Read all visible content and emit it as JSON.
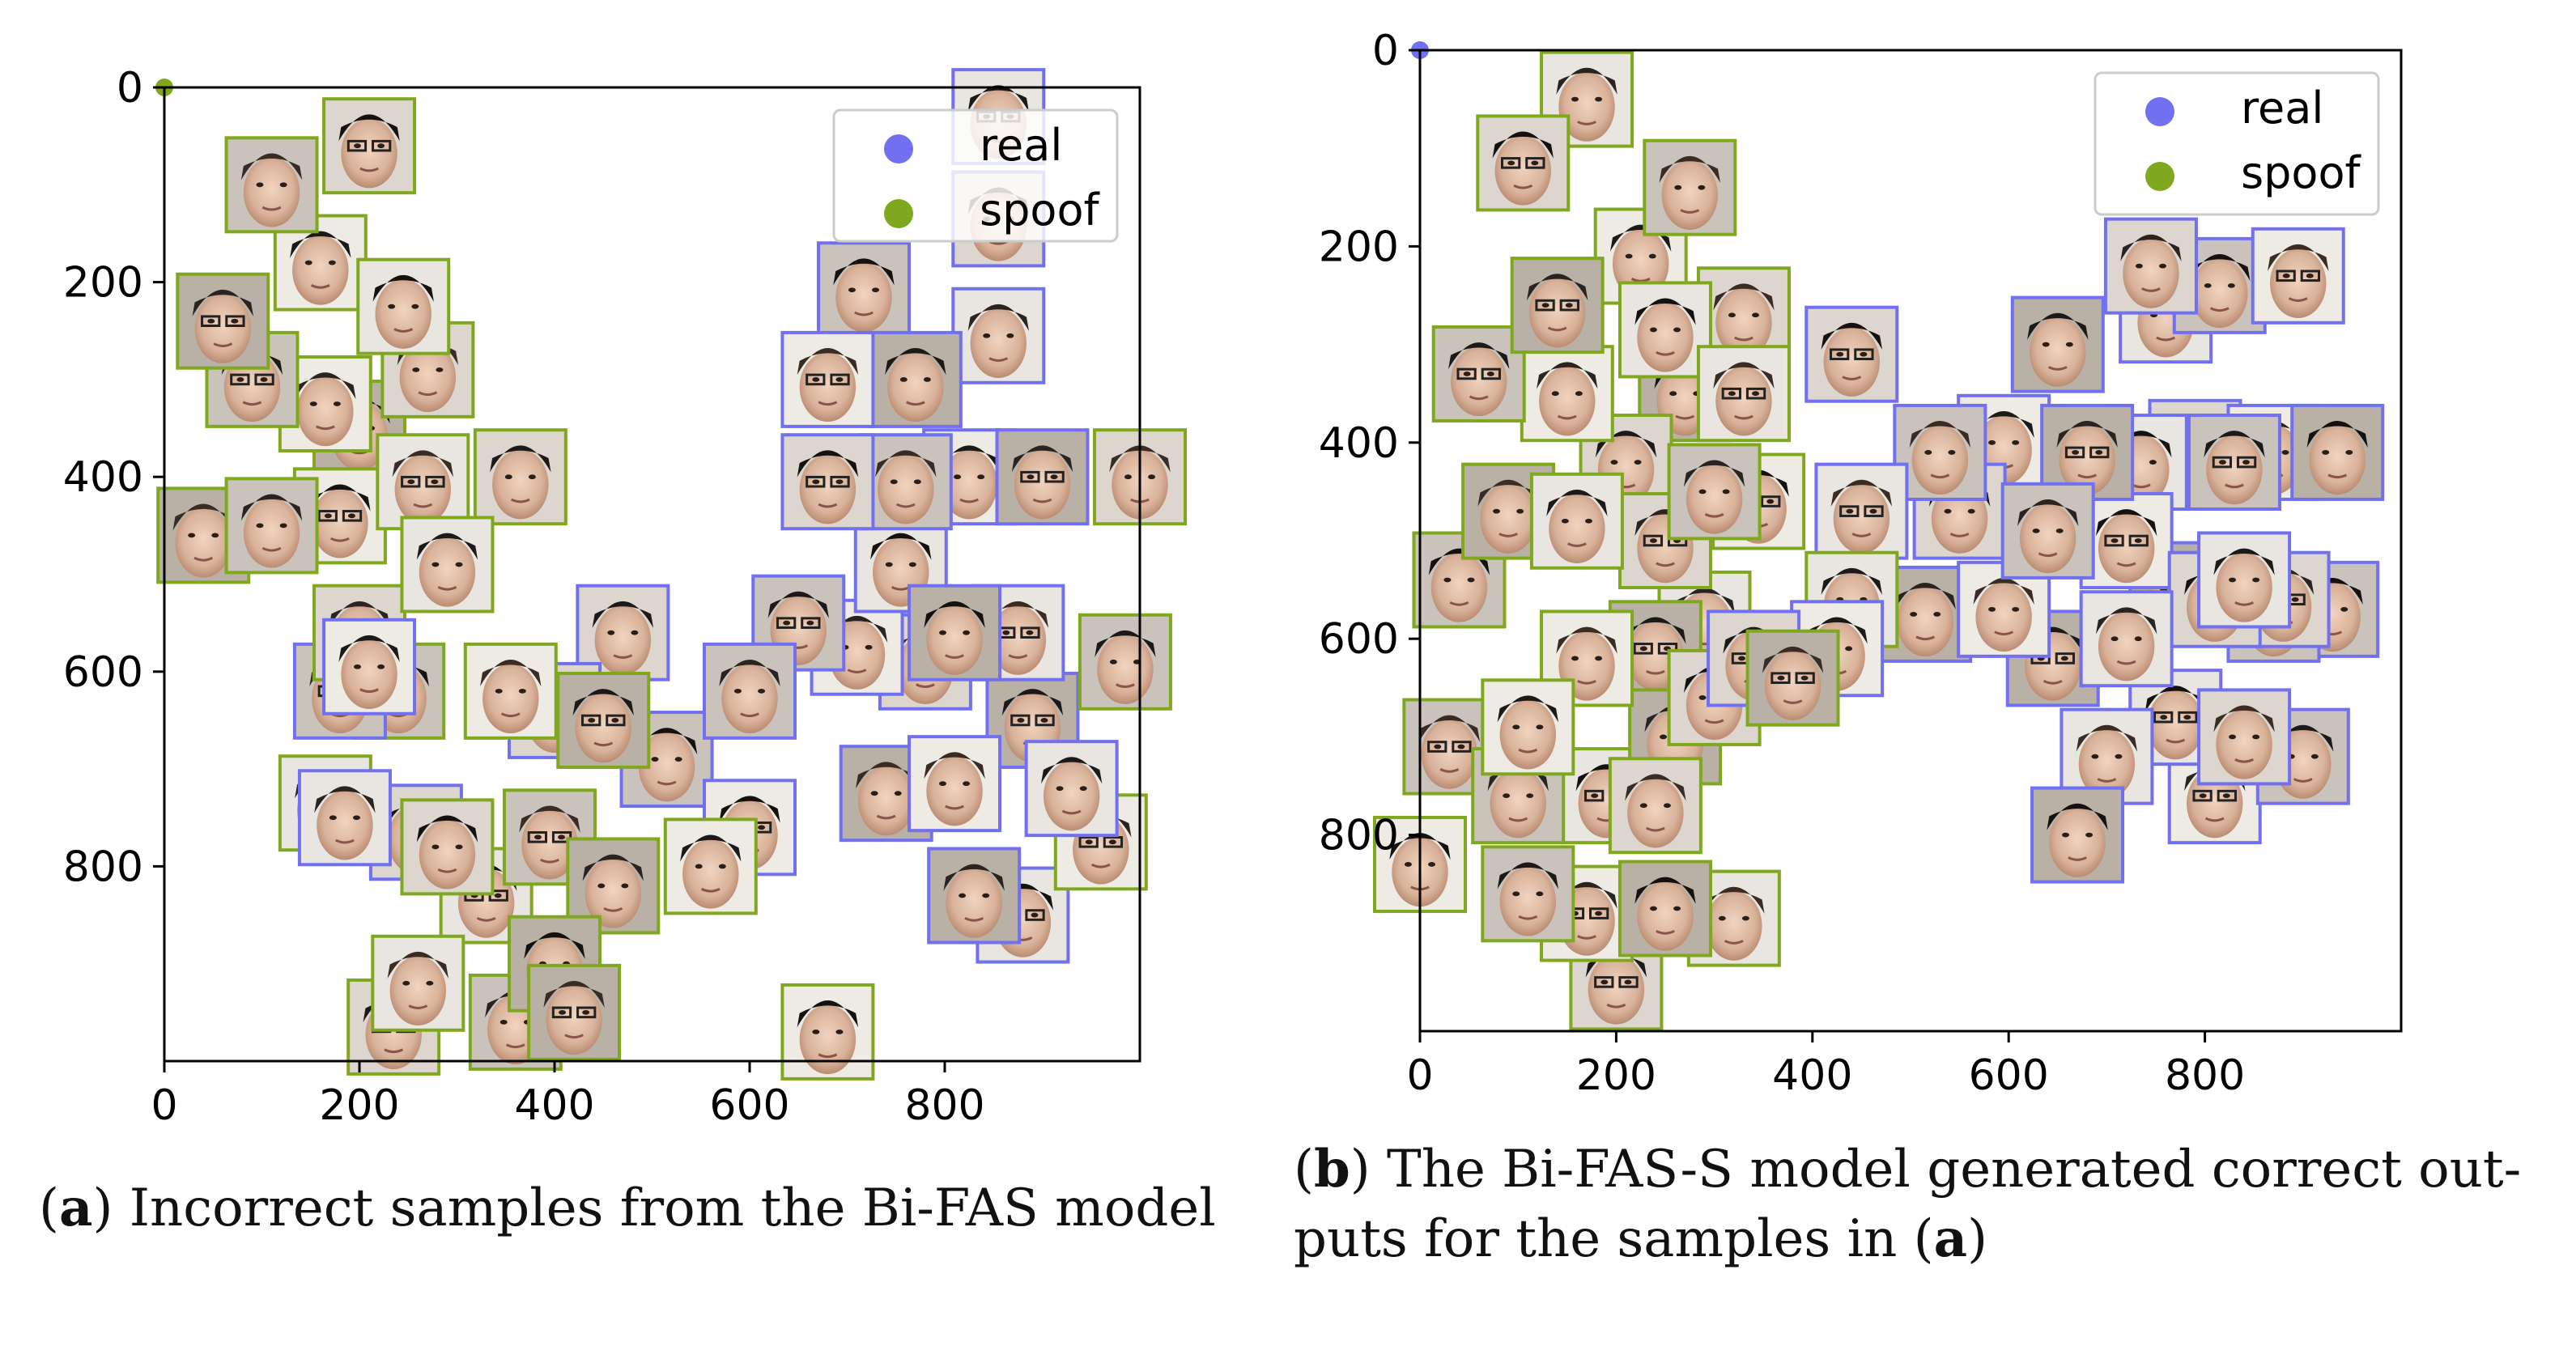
{
  "chart_data": [
    {
      "type": "scatter",
      "panel_label": "a",
      "caption_text": "Incorrect samples from the Bi-FAS model",
      "x_ticks": [
        "0",
        "200",
        "400",
        "600",
        "800"
      ],
      "y_ticks": [
        "0",
        "200",
        "400",
        "600",
        "800"
      ],
      "xlim": [
        0,
        1000
      ],
      "ylim": [
        1000,
        0
      ],
      "legend": [
        {
          "label": "real",
          "color": "#7070f0"
        },
        {
          "label": "spoof",
          "color": "#7fa81e"
        }
      ],
      "series": [
        {
          "name": "real",
          "points": [
            [
              855,
              30
            ],
            [
              855,
              135
            ],
            [
              717,
              208
            ],
            [
              680,
              300
            ],
            [
              770,
              300
            ],
            [
              855,
              255
            ],
            [
              680,
              405
            ],
            [
              760,
              405
            ],
            [
              825,
              400
            ],
            [
              900,
              400
            ],
            [
              755,
              490
            ],
            [
              780,
              590
            ],
            [
              650,
              550
            ],
            [
              710,
              575
            ],
            [
              810,
              560
            ],
            [
              875,
              560
            ],
            [
              470,
              560
            ],
            [
              600,
              620
            ],
            [
              600,
              760
            ],
            [
              740,
              725
            ],
            [
              930,
              720
            ],
            [
              400,
              640
            ],
            [
              515,
              690
            ],
            [
              810,
              715
            ],
            [
              890,
              650
            ],
            [
              185,
              750
            ],
            [
              258,
              765
            ],
            [
              180,
              620
            ],
            [
              210,
              595
            ],
            [
              830,
              830
            ],
            [
              880,
              850
            ]
          ]
        },
        {
          "name": "spoof",
          "points": [
            [
              0,
              0
            ],
            [
              210,
              60
            ],
            [
              110,
              100
            ],
            [
              160,
              180
            ],
            [
              60,
              240
            ],
            [
              245,
              225
            ],
            [
              270,
              290
            ],
            [
              90,
              300
            ],
            [
              165,
              325
            ],
            [
              200,
              350
            ],
            [
              265,
              405
            ],
            [
              365,
              400
            ],
            [
              110,
              450
            ],
            [
              180,
              440
            ],
            [
              40,
              460
            ],
            [
              290,
              490
            ],
            [
              200,
              560
            ],
            [
              240,
              620
            ],
            [
              355,
              620
            ],
            [
              450,
              650
            ],
            [
              165,
              735
            ],
            [
              290,
              780
            ],
            [
              395,
              770
            ],
            [
              560,
              800
            ],
            [
              460,
              820
            ],
            [
              330,
              830
            ],
            [
              1000,
              400
            ],
            [
              985,
              590
            ],
            [
              960,
              775
            ],
            [
              400,
              900
            ],
            [
              260,
              920
            ],
            [
              235,
              965
            ],
            [
              360,
              960
            ],
            [
              680,
              970
            ],
            [
              420,
              950
            ]
          ]
        }
      ]
    },
    {
      "type": "scatter",
      "panel_label": "b",
      "caption_text": "The Bi-FAS-S model generated correct out-puts for the samples in (a)",
      "caption_line1": "The Bi-FAS-S model generated correct out-",
      "caption_line2": "puts for the samples in (",
      "caption_ref": "a",
      "caption_close": ")",
      "x_ticks": [
        "0",
        "200",
        "400",
        "600",
        "800"
      ],
      "y_ticks": [
        "0",
        "200",
        "400",
        "600",
        "800"
      ],
      "xlim": [
        0,
        1000
      ],
      "ylim": [
        1000,
        0
      ],
      "legend": [
        {
          "label": "real",
          "color": "#7070f0"
        },
        {
          "label": "spoof",
          "color": "#7fa81e"
        }
      ],
      "series": [
        {
          "name": "real",
          "points": [
            [
              0,
              0
            ],
            [
              745,
              220
            ],
            [
              815,
              240
            ],
            [
              895,
              230
            ],
            [
              650,
              300
            ],
            [
              760,
              270
            ],
            [
              440,
              310
            ],
            [
              530,
              410
            ],
            [
              595,
              400
            ],
            [
              680,
              410
            ],
            [
              735,
              420
            ],
            [
              790,
              405
            ],
            [
              830,
              420
            ],
            [
              870,
              410
            ],
            [
              935,
              410
            ],
            [
              450,
              470
            ],
            [
              550,
              470
            ],
            [
              640,
              490
            ],
            [
              720,
              500
            ],
            [
              770,
              550
            ],
            [
              840,
              540
            ],
            [
              880,
              560
            ],
            [
              930,
              570
            ],
            [
              595,
              570
            ],
            [
              645,
              620
            ],
            [
              720,
              600
            ],
            [
              810,
              560
            ],
            [
              870,
              575
            ],
            [
              425,
              610
            ],
            [
              515,
              575
            ],
            [
              770,
              680
            ],
            [
              840,
              700
            ],
            [
              900,
              720
            ],
            [
              810,
              760
            ],
            [
              670,
              800
            ],
            [
              700,
              720
            ],
            [
              340,
              620
            ]
          ]
        },
        {
          "name": "spoof",
          "points": [
            [
              170,
              50
            ],
            [
              105,
              115
            ],
            [
              275,
              140
            ],
            [
              225,
              210
            ],
            [
              140,
              260
            ],
            [
              250,
              285
            ],
            [
              330,
              270
            ],
            [
              60,
              330
            ],
            [
              150,
              350
            ],
            [
              270,
              350
            ],
            [
              330,
              350
            ],
            [
              210,
              420
            ],
            [
              300,
              450
            ],
            [
              345,
              460
            ],
            [
              90,
              470
            ],
            [
              160,
              480
            ],
            [
              250,
              500
            ],
            [
              40,
              540
            ],
            [
              170,
              620
            ],
            [
              240,
              610
            ],
            [
              290,
              580
            ],
            [
              300,
              660
            ],
            [
              30,
              710
            ],
            [
              110,
              690
            ],
            [
              260,
              700
            ],
            [
              190,
              760
            ],
            [
              240,
              770
            ],
            [
              110,
              860
            ],
            [
              170,
              880
            ],
            [
              250,
              875
            ],
            [
              320,
              885
            ],
            [
              200,
              950
            ],
            [
              100,
              760
            ],
            [
              0,
              830
            ],
            [
              380,
              640
            ],
            [
              440,
              560
            ]
          ]
        }
      ]
    }
  ]
}
